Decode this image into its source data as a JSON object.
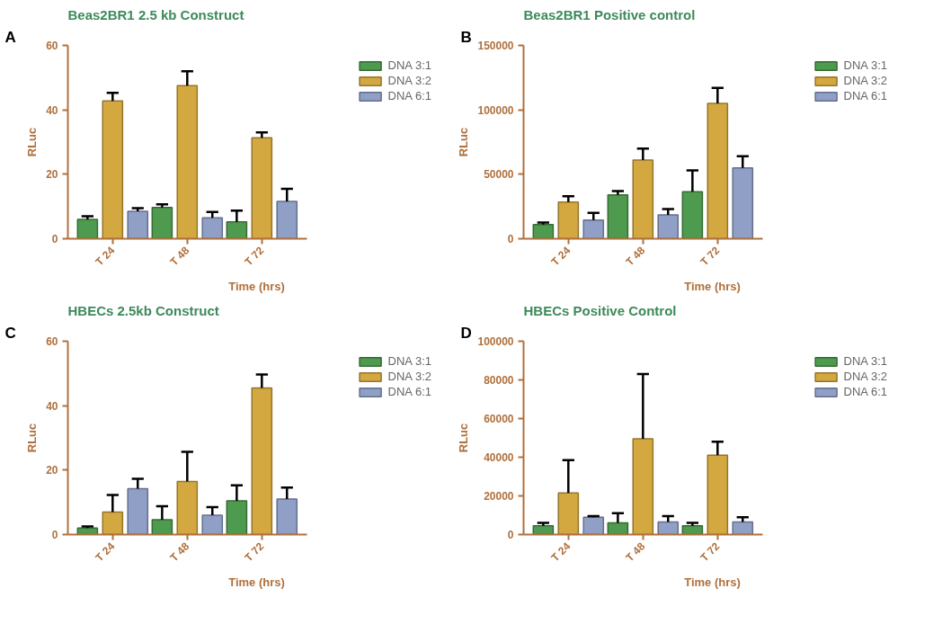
{
  "chart_data": [
    {
      "type": "bar",
      "title": "Beas2BR1 2.5 kb Construct",
      "annotations": [
        "A"
      ],
      "xlabel": "Time (hrs)",
      "ylabel": "RLuc",
      "categories": [
        "T 24",
        "T 48",
        "T 72"
      ],
      "ylim": [
        0,
        60
      ],
      "yticks": [
        0,
        20,
        40,
        60
      ],
      "grid": false,
      "legend": "top right",
      "series": [
        {
          "name": "DNA 3:1",
          "color": "#4e9a4e",
          "values": [
            6,
            9.7,
            5.2
          ],
          "errors": [
            [
              6,
              7
            ],
            [
              9.7,
              10.7
            ],
            [
              5.2,
              8.7
            ]
          ]
        },
        {
          "name": "DNA 3:2",
          "color": "#d4a840",
          "values": [
            42.8,
            47.5,
            31.3
          ],
          "errors": [
            [
              42.8,
              45.3
            ],
            [
              47.5,
              52
            ],
            [
              31.3,
              33
            ]
          ]
        },
        {
          "name": "DNA 6:1",
          "color": "#8f9fc6",
          "values": [
            8.5,
            6.5,
            11.6
          ],
          "errors": [
            [
              8.5,
              9.5
            ],
            [
              6.5,
              8.3
            ],
            [
              11.6,
              15.5
            ]
          ]
        }
      ]
    },
    {
      "type": "bar",
      "title": "Beas2BR1 Positive control",
      "annotations": [
        "B"
      ],
      "xlabel": "Time (hrs)",
      "ylabel": "RLuc",
      "categories": [
        "T 24",
        "T 48",
        "T 72"
      ],
      "ylim": [
        0,
        150000
      ],
      "yticks": [
        0,
        50000,
        100000,
        150000
      ],
      "grid": false,
      "legend": "top right",
      "series": [
        {
          "name": "DNA 3:1",
          "color": "#4e9a4e",
          "values": [
            11000,
            34000,
            36500
          ],
          "errors": [
            [
              11000,
              12500
            ],
            [
              34000,
              37000
            ],
            [
              36500,
              53000
            ]
          ]
        },
        {
          "name": "DNA 3:2",
          "color": "#d4a840",
          "values": [
            28500,
            61000,
            105000
          ],
          "errors": [
            [
              28500,
              33000
            ],
            [
              61000,
              70000
            ],
            [
              105000,
              117000
            ]
          ]
        },
        {
          "name": "DNA 6:1",
          "color": "#8f9fc6",
          "values": [
            14500,
            18500,
            55000
          ],
          "errors": [
            [
              14500,
              20000
            ],
            [
              18500,
              23000
            ],
            [
              55000,
              64000
            ]
          ]
        }
      ]
    },
    {
      "type": "bar",
      "title": "HBECs 2.5kb Construct",
      "annotations": [
        "C"
      ],
      "xlabel": "Time (hrs)",
      "ylabel": "RLuc",
      "categories": [
        "T 24",
        "T 48",
        "T 72"
      ],
      "ylim": [
        0,
        60
      ],
      "yticks": [
        0,
        20,
        40,
        60
      ],
      "grid": false,
      "legend": "top right",
      "series": [
        {
          "name": "DNA 3:1",
          "color": "#4e9a4e",
          "values": [
            2,
            4.6,
            10.5
          ],
          "errors": [
            [
              2,
              2.5
            ],
            [
              4.6,
              8.8
            ],
            [
              10.5,
              15.3
            ]
          ]
        },
        {
          "name": "DNA 3:2",
          "color": "#d4a840",
          "values": [
            7,
            16.5,
            45.5
          ],
          "errors": [
            [
              7,
              12.3
            ],
            [
              16.5,
              25.7
            ],
            [
              45.5,
              49.7
            ]
          ]
        },
        {
          "name": "DNA 6:1",
          "color": "#8f9fc6",
          "values": [
            14.2,
            6,
            11
          ],
          "errors": [
            [
              14.2,
              17.3
            ],
            [
              6,
              8.5
            ],
            [
              11,
              14.6
            ]
          ]
        }
      ]
    },
    {
      "type": "bar",
      "title": "HBECs Positive Control",
      "annotations": [
        "D"
      ],
      "xlabel": "Time (hrs)",
      "ylabel": "RLuc",
      "categories": [
        "T 24",
        "T 48",
        "T 72"
      ],
      "ylim": [
        0,
        100000
      ],
      "yticks": [
        0,
        20000,
        40000,
        60000,
        80000,
        100000
      ],
      "grid": false,
      "legend": "top right",
      "series": [
        {
          "name": "DNA 3:1",
          "color": "#4e9a4e",
          "values": [
            4500,
            6000,
            4500
          ],
          "errors": [
            [
              4500,
              6000
            ],
            [
              6000,
              11000
            ],
            [
              4500,
              6000
            ]
          ]
        },
        {
          "name": "DNA 3:2",
          "color": "#d4a840",
          "values": [
            21500,
            49500,
            41000
          ],
          "errors": [
            [
              21500,
              38500
            ],
            [
              49500,
              83000
            ],
            [
              41000,
              48000
            ]
          ]
        },
        {
          "name": "DNA 6:1",
          "color": "#8f9fc6",
          "values": [
            9000,
            6500,
            6500
          ],
          "errors": [
            [
              9000,
              9500
            ],
            [
              6500,
              9500
            ],
            [
              6500,
              9000
            ]
          ]
        }
      ]
    }
  ]
}
